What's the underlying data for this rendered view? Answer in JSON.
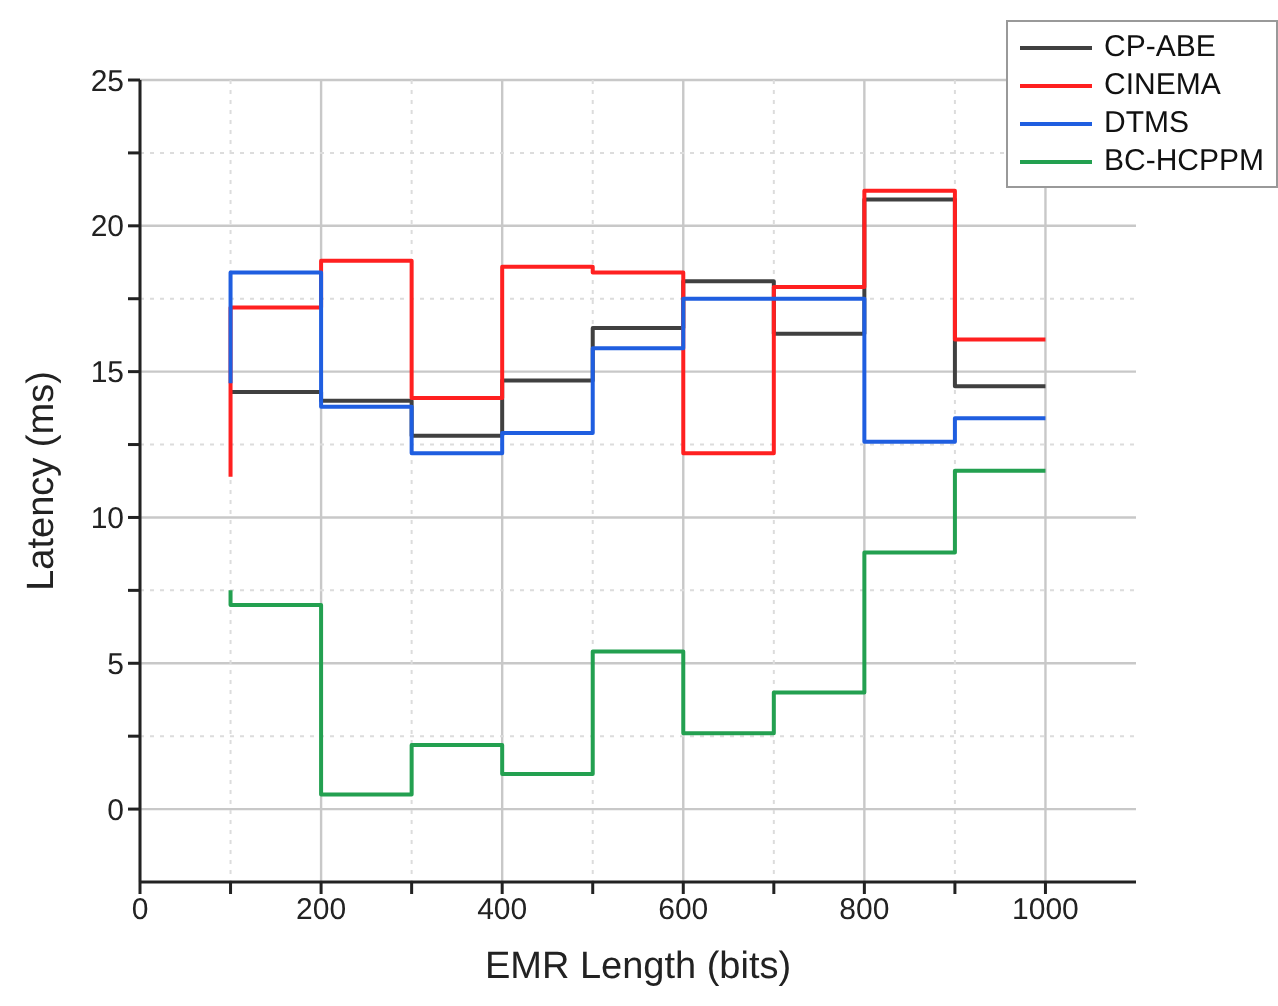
{
  "chart_data": {
    "type": "step",
    "xlabel": "EMR Length (bits)",
    "ylabel": "Latency (ms)",
    "x": [
      100,
      200,
      300,
      400,
      500,
      600,
      700,
      800,
      900,
      1000
    ],
    "series": [
      {
        "name": "CP-ABE",
        "color": "#404040",
        "values": [
          14.3,
          14.3,
          14.0,
          12.8,
          14.7,
          16.5,
          18.1,
          16.3,
          20.9,
          14.5
        ]
      },
      {
        "name": "CINEMA",
        "color": "#ff2020",
        "values": [
          11.4,
          17.2,
          18.8,
          14.1,
          18.6,
          18.4,
          12.2,
          17.9,
          21.2,
          16.1
        ]
      },
      {
        "name": "DTMS",
        "color": "#1f5ee0",
        "values": [
          14.6,
          18.4,
          13.8,
          12.2,
          12.9,
          15.8,
          17.5,
          17.5,
          12.6,
          13.4
        ]
      },
      {
        "name": "BC-HCPPM",
        "color": "#23a050",
        "values": [
          7.5,
          7.0,
          0.5,
          2.2,
          1.2,
          5.4,
          2.6,
          4.0,
          8.8,
          11.6
        ]
      }
    ],
    "xlim": [
      0,
      1100
    ],
    "xticks": [
      0,
      {
        "value": 100,
        "label": null
      },
      200,
      {
        "value": 300,
        "label": null
      },
      400,
      {
        "value": 500,
        "label": null
      },
      600,
      {
        "value": 700,
        "label": null
      },
      800,
      {
        "value": 900,
        "label": null
      },
      1000
    ],
    "ylim": [
      -2.5,
      25
    ],
    "yticks": [
      0,
      {
        "value": 2.5,
        "label": null
      },
      5,
      {
        "value": 7.5,
        "label": null
      },
      10,
      {
        "value": 12.5,
        "label": null
      },
      15,
      {
        "value": 17.5,
        "label": null
      },
      20,
      {
        "value": 22.5,
        "label": null
      },
      25
    ],
    "grid": true,
    "legend": "top right",
    "marker": "none",
    "line_style": "solid"
  }
}
